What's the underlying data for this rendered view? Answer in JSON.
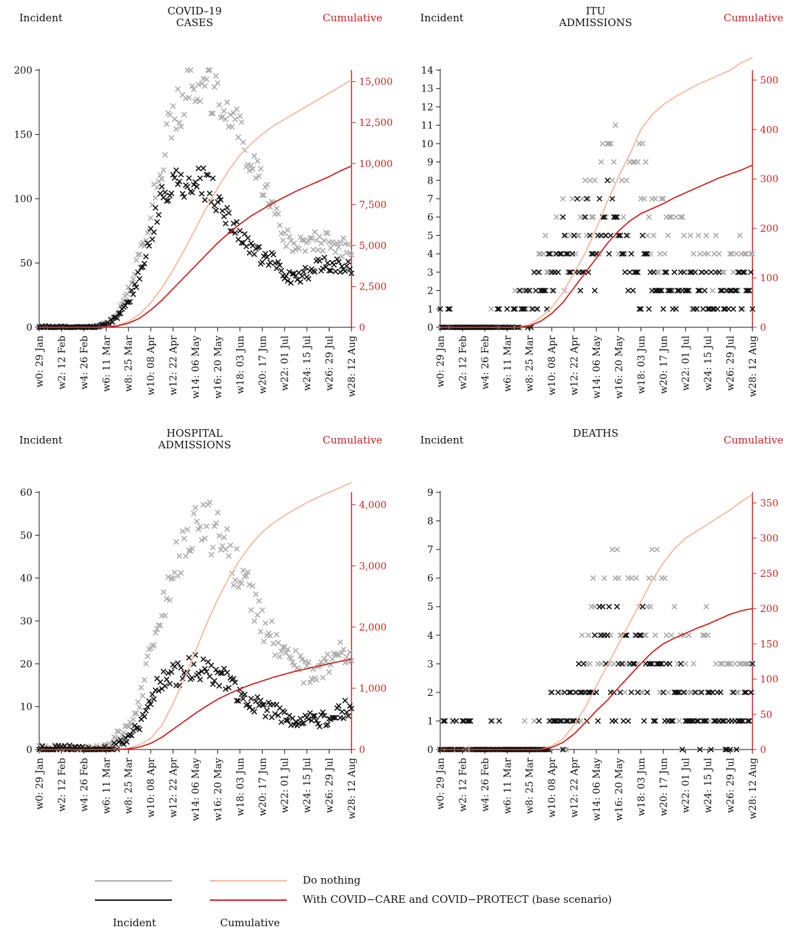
{
  "panels": [
    {
      "title": "COVID–19\nCASES",
      "left_label": "Incident",
      "right_label": "Cumulative",
      "chart_data": {
        "type": "scatter+line",
        "x_tick_labels": [
          "w0: 29 Jan",
          "w2: 12 Feb",
          "w4: 26 Feb",
          "w6: 11 Mar",
          "w8: 25 Mar",
          "w10: 08 Apr",
          "w12: 22 Apr",
          "w14: 06 May",
          "w16: 20 May",
          "w18: 03 Jun",
          "w20: 17 Jun",
          "w22: 01 Jul",
          "w24: 15 Jul",
          "w26: 29 Jul",
          "w28: 12 Aug"
        ],
        "y_left": {
          "min": 0,
          "max": 200,
          "ticks": [
            0,
            50,
            100,
            150,
            200
          ],
          "tick_labels": [
            "0",
            "50",
            "100",
            "150",
            "200"
          ]
        },
        "y_right": {
          "min": 0,
          "max": 15000,
          "ticks": [
            0,
            2500,
            5000,
            7500,
            10000,
            12500,
            15000
          ],
          "tick_labels": [
            "0",
            "2,500",
            "5,000",
            "7,500",
            "10,000",
            "12,500",
            "15,000"
          ]
        },
        "right_axis_top": 15700,
        "incident_do_nothing": {
          "weeks": [
            0,
            5,
            6,
            7,
            8,
            9,
            10,
            11,
            12,
            13,
            14,
            15,
            16,
            17,
            18,
            19,
            20,
            21,
            22,
            23,
            24,
            25,
            26,
            27,
            28
          ],
          "values": [
            0,
            0,
            3,
            10,
            28,
            55,
            90,
            130,
            165,
            180,
            182,
            195,
            178,
            168,
            152,
            130,
            110,
            95,
            72,
            62,
            65,
            67,
            66,
            62,
            62
          ]
        },
        "incident_base": {
          "weeks": [
            0,
            5,
            6,
            7,
            8,
            9,
            10,
            11,
            12,
            13,
            14,
            15,
            16,
            17,
            18,
            19,
            20,
            21,
            22,
            23,
            24,
            25,
            26,
            27,
            28
          ],
          "values": [
            0,
            0,
            2,
            8,
            20,
            42,
            72,
            98,
            108,
            112,
            110,
            112,
            100,
            85,
            70,
            62,
            55,
            52,
            40,
            38,
            42,
            48,
            50,
            48,
            45
          ]
        },
        "cumulative_do_nothing": {
          "weeks": [
            0,
            5,
            6,
            7,
            8,
            9,
            10,
            11,
            12,
            13,
            14,
            15,
            16,
            17,
            18,
            19,
            20,
            21,
            22,
            23,
            24,
            25,
            26,
            27,
            28
          ],
          "values": [
            0,
            0,
            30,
            120,
            350,
            800,
            1500,
            2400,
            3500,
            4700,
            6000,
            7300,
            8500,
            9600,
            10500,
            11200,
            11800,
            12300,
            12700,
            13100,
            13500,
            13900,
            14300,
            14700,
            15100
          ]
        },
        "cumulative_base": {
          "weeks": [
            0,
            5,
            6,
            7,
            8,
            9,
            10,
            11,
            12,
            13,
            14,
            15,
            16,
            17,
            18,
            19,
            20,
            21,
            22,
            23,
            24,
            25,
            26,
            27,
            28
          ],
          "values": [
            0,
            0,
            20,
            80,
            250,
            550,
            1050,
            1650,
            2350,
            3050,
            3750,
            4450,
            5150,
            5750,
            6300,
            6800,
            7200,
            7600,
            7950,
            8300,
            8600,
            8900,
            9200,
            9550,
            9850
          ]
        }
      }
    },
    {
      "title": "ITU\nADMISSIONS",
      "left_label": "Incident",
      "right_label": "Cumulative",
      "chart_data": {
        "type": "scatter+line",
        "x_tick_labels": [
          "w0: 29 Jan",
          "w2: 12 Feb",
          "w4: 26 Feb",
          "w6: 11 Mar",
          "w8: 25 Mar",
          "w10: 08 Apr",
          "w12: 22 Apr",
          "w14: 06 May",
          "w16: 20 May",
          "w18: 03 Jun",
          "w20: 17 Jun",
          "w22: 01 Jul",
          "w24: 15 Jul",
          "w26: 29 Jul",
          "w28: 12 Aug"
        ],
        "y_left": {
          "min": 0,
          "max": 14,
          "ticks": [
            0,
            1,
            2,
            3,
            4,
            5,
            6,
            7,
            8,
            9,
            10,
            11,
            12,
            13,
            14
          ],
          "tick_labels": [
            "0",
            "1",
            "2",
            "3",
            "4",
            "5",
            "6",
            "7",
            "8",
            "9",
            "10",
            "11",
            "12",
            "13",
            "14"
          ]
        },
        "y_right": {
          "min": 0,
          "max": 500,
          "ticks": [
            0,
            100,
            200,
            300,
            400,
            500
          ],
          "tick_labels": [
            "0",
            "100",
            "200",
            "300",
            "400",
            "500"
          ]
        },
        "right_axis_top": 520,
        "incident_do_nothing": {
          "weeks": [
            0,
            6,
            7,
            8,
            9,
            10,
            11,
            12,
            13,
            14,
            15,
            16,
            17,
            18,
            19,
            20,
            21,
            22,
            23,
            24,
            25,
            26,
            27,
            28
          ],
          "values": [
            0,
            0,
            1,
            2,
            3,
            4,
            5,
            5,
            6,
            7,
            8,
            7,
            6,
            7,
            6,
            5,
            4,
            4,
            3,
            3,
            3,
            3,
            3,
            3
          ]
        },
        "incident_base": {
          "weeks": [
            0,
            6,
            7,
            8,
            9,
            10,
            11,
            12,
            13,
            14,
            15,
            16,
            17,
            18,
            19,
            20,
            21,
            22,
            23,
            24,
            25,
            26,
            27,
            28
          ],
          "values": [
            0,
            0,
            1,
            1,
            2,
            3,
            4,
            4,
            5,
            4,
            5,
            4,
            3,
            3,
            2,
            2,
            2,
            2,
            2,
            2,
            2,
            2,
            2,
            2
          ]
        },
        "cumulative_do_nothing": {
          "weeks": [
            0,
            7,
            8,
            9,
            10,
            11,
            12,
            13,
            14,
            15,
            16,
            17,
            18,
            19,
            20,
            21,
            22,
            23,
            24,
            25,
            26,
            27,
            28
          ],
          "values": [
            0,
            0,
            5,
            20,
            40,
            70,
            110,
            150,
            200,
            255,
            305,
            350,
            400,
            430,
            450,
            465,
            478,
            490,
            500,
            510,
            520,
            535,
            545
          ]
        },
        "cumulative_base": {
          "weeks": [
            0,
            7,
            8,
            9,
            10,
            11,
            12,
            13,
            14,
            15,
            16,
            17,
            18,
            19,
            20,
            21,
            22,
            23,
            24,
            25,
            26,
            27,
            28
          ],
          "values": [
            0,
            0,
            3,
            12,
            28,
            50,
            80,
            110,
            140,
            170,
            195,
            215,
            230,
            240,
            250,
            262,
            272,
            282,
            292,
            302,
            310,
            318,
            328
          ]
        }
      }
    },
    {
      "title": "HOSPITAL\nADMISSIONS",
      "left_label": "Incident",
      "right_label": "Cumulative",
      "chart_data": {
        "type": "scatter+line",
        "x_tick_labels": [
          "w0: 29 Jan",
          "w2: 12 Feb",
          "w4: 26 Feb",
          "w6: 11 Mar",
          "w8: 25 Mar",
          "w10: 08 Apr",
          "w12: 22 Apr",
          "w14: 06 May",
          "w16: 20 May",
          "w18: 03 Jun",
          "w20: 17 Jun",
          "w22: 01 Jul",
          "w24: 15 Jul",
          "w26: 29 Jul",
          "w28: 12 Aug"
        ],
        "y_left": {
          "min": 0,
          "max": 60,
          "ticks": [
            0,
            10,
            20,
            30,
            40,
            50,
            60
          ],
          "tick_labels": [
            "0",
            "10",
            "20",
            "30",
            "40",
            "50",
            "60"
          ]
        },
        "y_right": {
          "min": 0,
          "max": 4000,
          "ticks": [
            0,
            1000,
            2000,
            3000,
            4000
          ],
          "tick_labels": [
            "0",
            "1,000",
            "2,000",
            "3,000",
            "4,000"
          ]
        },
        "right_axis_top": 4200,
        "incident_do_nothing": {
          "weeks": [
            0,
            5,
            6,
            7,
            8,
            9,
            10,
            11,
            12,
            13,
            14,
            15,
            16,
            17,
            18,
            19,
            20,
            21,
            22,
            23,
            24,
            25,
            26,
            27,
            28
          ],
          "values": [
            0,
            0,
            1,
            3,
            5,
            12,
            22,
            32,
            42,
            48,
            50,
            52,
            50,
            45,
            42,
            36,
            30,
            26,
            24,
            20,
            18,
            18,
            20,
            22,
            20
          ]
        },
        "incident_base": {
          "weeks": [
            0,
            5,
            6,
            7,
            8,
            9,
            10,
            11,
            12,
            13,
            14,
            15,
            16,
            17,
            18,
            19,
            20,
            21,
            22,
            23,
            24,
            25,
            26,
            27,
            28
          ],
          "values": [
            0,
            0,
            0,
            1,
            3,
            6,
            12,
            16,
            17,
            18,
            19,
            18,
            18,
            16,
            13,
            11,
            10,
            9,
            8,
            7,
            7,
            7,
            7,
            9,
            10
          ]
        },
        "cumulative_do_nothing": {
          "weeks": [
            0,
            7,
            8,
            9,
            10,
            11,
            12,
            13,
            14,
            15,
            16,
            17,
            18,
            19,
            20,
            21,
            22,
            23,
            24,
            25,
            26,
            27,
            28
          ],
          "values": [
            0,
            0,
            20,
            80,
            180,
            400,
            750,
            1150,
            1600,
            2050,
            2450,
            2800,
            3100,
            3350,
            3550,
            3700,
            3820,
            3930,
            4030,
            4120,
            4200,
            4280,
            4360
          ]
        },
        "cumulative_base": {
          "weeks": [
            0,
            7,
            8,
            9,
            10,
            11,
            12,
            13,
            14,
            15,
            16,
            17,
            18,
            19,
            20,
            21,
            22,
            23,
            24,
            25,
            26,
            27,
            28
          ],
          "values": [
            0,
            0,
            10,
            40,
            100,
            200,
            330,
            460,
            590,
            710,
            820,
            910,
            990,
            1060,
            1120,
            1180,
            1230,
            1280,
            1320,
            1360,
            1400,
            1440,
            1480
          ]
        }
      }
    },
    {
      "title": "DEATHS",
      "left_label": "Incident",
      "right_label": "Cumulative",
      "chart_data": {
        "type": "scatter+line",
        "x_tick_labels": [
          "w0: 29 Jan",
          "w2: 12 Feb",
          "w4: 26 Feb",
          "w6: 11 Mar",
          "w8: 25 Mar",
          "w10: 08 Apr",
          "w12: 22 Apr",
          "w14: 06 May",
          "w16: 20 May",
          "w18: 03 Jun",
          "w20: 17 Jun",
          "w22: 01 Jul",
          "w24: 15 Jul",
          "w26: 29 Jul",
          "w28: 12 Aug"
        ],
        "y_left": {
          "min": 0,
          "max": 9,
          "ticks": [
            0,
            1,
            2,
            3,
            4,
            5,
            6,
            7,
            8,
            9
          ],
          "tick_labels": [
            "0",
            "1",
            "2",
            "3",
            "4",
            "5",
            "6",
            "7",
            "8",
            "9"
          ]
        },
        "y_right": {
          "min": 0,
          "max": 350,
          "ticks": [
            0,
            50,
            100,
            150,
            200,
            250,
            300,
            350
          ],
          "tick_labels": [
            "0",
            "50",
            "100",
            "150",
            "200",
            "250",
            "300",
            "350"
          ]
        },
        "right_axis_top": 365,
        "incident_do_nothing": {
          "weeks": [
            0,
            8,
            9,
            10,
            11,
            12,
            13,
            14,
            15,
            16,
            17,
            18,
            19,
            20,
            21,
            22,
            23,
            24,
            25,
            26,
            27,
            28
          ],
          "values": [
            0,
            0,
            0,
            1,
            1,
            2,
            3,
            4,
            5,
            5,
            5,
            4,
            5,
            4,
            3,
            3,
            3,
            3,
            2,
            2,
            2,
            2
          ]
        },
        "incident_base": {
          "weeks": [
            0,
            8,
            9,
            10,
            11,
            12,
            13,
            14,
            15,
            16,
            17,
            18,
            19,
            20,
            21,
            22,
            23,
            24,
            25,
            26,
            27,
            28
          ],
          "values": [
            0,
            0,
            0,
            1,
            1,
            2,
            2,
            3,
            3,
            3,
            3,
            3,
            2,
            2,
            2,
            1,
            1,
            2,
            1,
            1,
            1,
            2
          ]
        },
        "cumulative_do_nothing": {
          "weeks": [
            0,
            9,
            10,
            11,
            12,
            13,
            14,
            15,
            16,
            17,
            18,
            19,
            20,
            21,
            22,
            23,
            24,
            25,
            26,
            27,
            28
          ],
          "values": [
            0,
            0,
            5,
            15,
            35,
            60,
            90,
            120,
            150,
            180,
            210,
            240,
            265,
            285,
            300,
            310,
            320,
            330,
            340,
            352,
            362
          ]
        },
        "cumulative_base": {
          "weeks": [
            0,
            9,
            10,
            11,
            12,
            13,
            14,
            15,
            16,
            17,
            18,
            19,
            20,
            21,
            22,
            23,
            24,
            25,
            26,
            27,
            28
          ],
          "values": [
            0,
            0,
            3,
            10,
            22,
            38,
            55,
            70,
            88,
            105,
            122,
            138,
            150,
            158,
            165,
            172,
            178,
            185,
            192,
            197,
            200
          ]
        }
      }
    }
  ],
  "colors": {
    "incident_do_nothing": "#aaaaaa",
    "incident_base": "#111111",
    "cumulative_do_nothing": "#f6b8a0",
    "cumulative_base": "#cc2222",
    "right_axis": "#cc2222"
  },
  "legend": {
    "do_nothing": "Do nothing",
    "base": "With COVID−CARE and COVID−PROTECT (base scenario)",
    "incident": "Incident",
    "cumulative": "Cumulative"
  }
}
